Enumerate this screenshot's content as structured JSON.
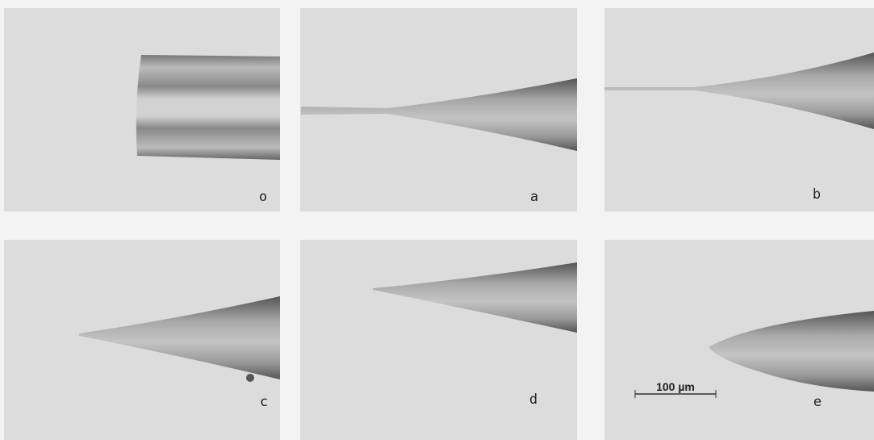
{
  "panels": [
    {
      "label": "o"
    },
    {
      "label": "a"
    },
    {
      "label": "b"
    },
    {
      "label": "c"
    },
    {
      "label": "d"
    },
    {
      "label": "e"
    }
  ],
  "scale_bar": {
    "label": "100 µm"
  }
}
